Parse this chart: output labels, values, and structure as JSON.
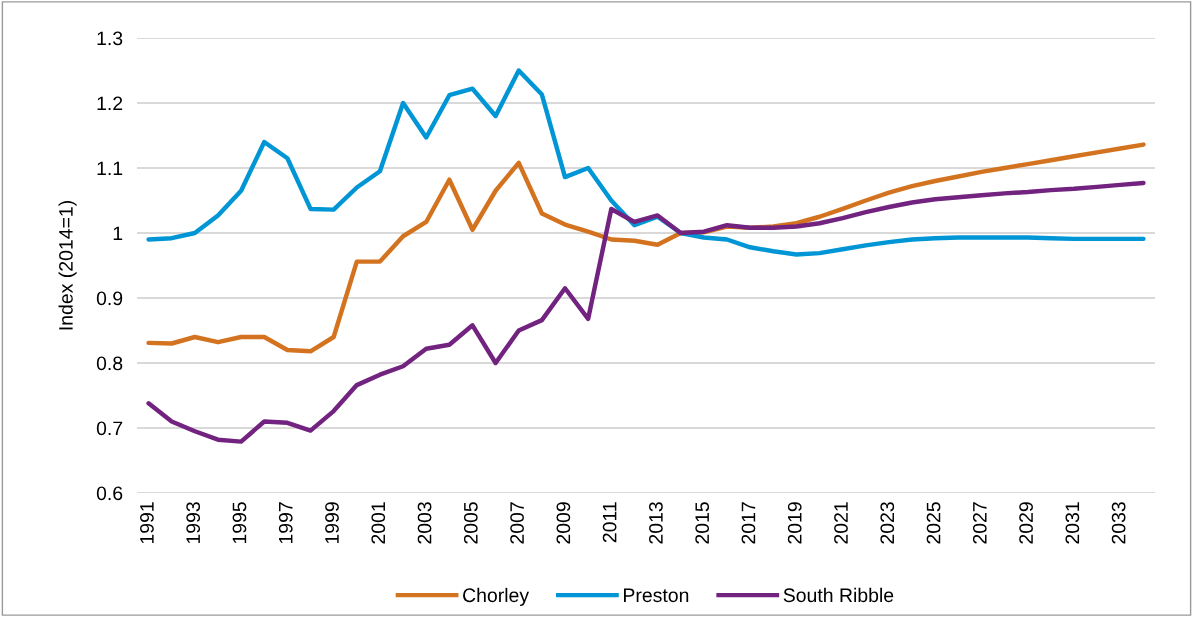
{
  "chart_data": {
    "type": "line",
    "ylabel": "Index (2014=1)",
    "categories": [
      "1991",
      null,
      "1993",
      null,
      "1995",
      null,
      "1997",
      null,
      "1999",
      null,
      "2001",
      null,
      "2003",
      null,
      "2005",
      null,
      "2007",
      null,
      "2009",
      null,
      "2011",
      null,
      "2013",
      null,
      "2015",
      null,
      "2017",
      null,
      "2019",
      null,
      "2021",
      null,
      "2023",
      null,
      "2025",
      null,
      "2027",
      null,
      "2029",
      null,
      "2031",
      null,
      "2033",
      null
    ],
    "series": [
      {
        "name": "Chorley",
        "color": "#d4731f",
        "values": [
          0.831,
          0.83,
          0.84,
          0.832,
          0.84,
          0.84,
          0.82,
          0.818,
          0.84,
          0.956,
          0.956,
          0.995,
          1.017,
          1.082,
          1.005,
          1.065,
          1.108,
          1.03,
          1.013,
          1.002,
          0.99,
          0.988,
          0.982,
          1.0,
          1.001,
          1.01,
          1.008,
          1.01,
          1.015,
          1.025,
          1.037,
          1.05,
          1.062,
          1.072,
          1.08,
          1.087,
          1.094,
          1.1,
          1.106,
          1.112,
          1.118,
          1.124,
          1.13,
          1.136
        ]
      },
      {
        "name": "Preston",
        "color": "#0096d6",
        "values": [
          0.99,
          0.992,
          1.0,
          1.027,
          1.065,
          1.14,
          1.115,
          1.037,
          1.036,
          1.07,
          1.095,
          1.2,
          1.147,
          1.212,
          1.222,
          1.18,
          1.25,
          1.213,
          1.086,
          1.1,
          1.05,
          1.012,
          1.025,
          1.0,
          0.993,
          0.99,
          0.978,
          0.972,
          0.967,
          0.969,
          0.975,
          0.981,
          0.986,
          0.99,
          0.992,
          0.993,
          0.993,
          0.993,
          0.993,
          0.992,
          0.991,
          0.991,
          0.991,
          0.991
        ]
      },
      {
        "name": "South Ribble",
        "color": "#72237f",
        "values": [
          0.738,
          0.71,
          0.695,
          0.682,
          0.679,
          0.71,
          0.708,
          0.696,
          0.726,
          0.766,
          0.782,
          0.795,
          0.822,
          0.828,
          0.858,
          0.8,
          0.85,
          0.866,
          0.915,
          0.868,
          1.037,
          1.017,
          1.027,
          1.0,
          1.002,
          1.012,
          1.008,
          1.008,
          1.01,
          1.015,
          1.023,
          1.032,
          1.04,
          1.047,
          1.052,
          1.055,
          1.058,
          1.061,
          1.063,
          1.066,
          1.068,
          1.071,
          1.074,
          1.077
        ]
      }
    ],
    "ylim": [
      0.6,
      1.3
    ],
    "yticks": [
      0.6,
      0.7,
      0.8,
      0.9,
      1,
      1.1,
      1.2,
      1.3
    ],
    "grid": "y",
    "legend": "bottom",
    "marker": "none",
    "line_style": "solid"
  }
}
